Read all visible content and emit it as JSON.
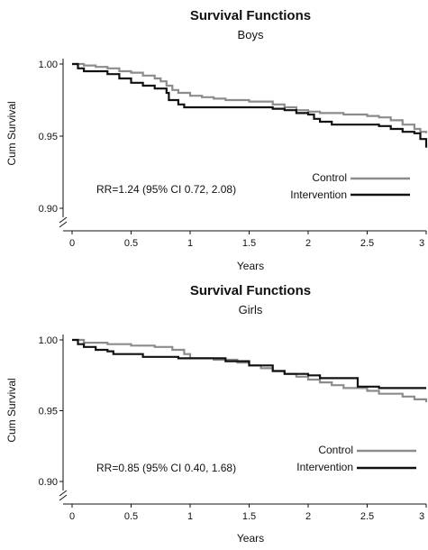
{
  "charts": [
    {
      "type": "line",
      "title": "Survival Functions",
      "subtitle": "Boys",
      "xlabel": "Years",
      "ylabel": "Cum Survival",
      "xlim": [
        0,
        3
      ],
      "ylim": [
        0.9,
        1.0
      ],
      "x_ticks": [
        0,
        0.5,
        1,
        1.5,
        2,
        2.5,
        3
      ],
      "x_tick_labels": [
        "0",
        "0.5",
        "1",
        "1.5",
        "2",
        "2.5",
        "3"
      ],
      "y_ticks": [
        0.9,
        0.95,
        1.0
      ],
      "y_tick_labels": [
        "0.90",
        "0.95",
        "1.00"
      ],
      "annotation": "RR=1.24 (95% CI 0.72, 2.08)",
      "legend_position": "right",
      "series": [
        {
          "name": "Control",
          "color": "#8c8c8c",
          "points": [
            [
              0,
              1.0
            ],
            [
              0.05,
              1.0
            ],
            [
              0.1,
              0.999
            ],
            [
              0.2,
              0.998
            ],
            [
              0.3,
              0.997
            ],
            [
              0.4,
              0.995
            ],
            [
              0.5,
              0.994
            ],
            [
              0.6,
              0.992
            ],
            [
              0.7,
              0.99
            ],
            [
              0.75,
              0.988
            ],
            [
              0.8,
              0.985
            ],
            [
              0.85,
              0.982
            ],
            [
              0.9,
              0.98
            ],
            [
              1.0,
              0.978
            ],
            [
              1.1,
              0.977
            ],
            [
              1.2,
              0.976
            ],
            [
              1.3,
              0.975
            ],
            [
              1.5,
              0.974
            ],
            [
              1.7,
              0.972
            ],
            [
              1.8,
              0.97
            ],
            [
              1.9,
              0.968
            ],
            [
              2.0,
              0.967
            ],
            [
              2.1,
              0.966
            ],
            [
              2.3,
              0.965
            ],
            [
              2.5,
              0.964
            ],
            [
              2.6,
              0.963
            ],
            [
              2.7,
              0.961
            ],
            [
              2.8,
              0.958
            ],
            [
              2.9,
              0.955
            ],
            [
              2.95,
              0.953
            ],
            [
              3.0,
              0.952
            ]
          ]
        },
        {
          "name": "Intervention",
          "color": "#111111",
          "points": [
            [
              0,
              1.0
            ],
            [
              0.05,
              0.997
            ],
            [
              0.1,
              0.995
            ],
            [
              0.3,
              0.993
            ],
            [
              0.4,
              0.99
            ],
            [
              0.5,
              0.987
            ],
            [
              0.6,
              0.985
            ],
            [
              0.7,
              0.983
            ],
            [
              0.8,
              0.98
            ],
            [
              0.82,
              0.975
            ],
            [
              0.9,
              0.972
            ],
            [
              0.95,
              0.97
            ],
            [
              1.0,
              0.97
            ],
            [
              1.5,
              0.97
            ],
            [
              1.7,
              0.969
            ],
            [
              1.8,
              0.968
            ],
            [
              1.9,
              0.966
            ],
            [
              2.0,
              0.965
            ],
            [
              2.05,
              0.962
            ],
            [
              2.1,
              0.96
            ],
            [
              2.2,
              0.958
            ],
            [
              2.5,
              0.958
            ],
            [
              2.6,
              0.957
            ],
            [
              2.7,
              0.955
            ],
            [
              2.8,
              0.953
            ],
            [
              2.9,
              0.952
            ],
            [
              2.95,
              0.948
            ],
            [
              3.0,
              0.942
            ]
          ]
        }
      ]
    },
    {
      "type": "line",
      "title": "Survival Functions",
      "subtitle": "Girls",
      "xlabel": "Years",
      "ylabel": "Cum Survival",
      "xlim": [
        0,
        3
      ],
      "ylim": [
        0.9,
        1.0
      ],
      "x_ticks": [
        0,
        0.5,
        1,
        1.5,
        2,
        2.5,
        3
      ],
      "x_tick_labels": [
        "0",
        "0.5",
        "1",
        "1.5",
        "2",
        "2.5",
        "3"
      ],
      "y_ticks": [
        0.9,
        0.95,
        1.0
      ],
      "y_tick_labels": [
        "0.90",
        "0.95",
        "1.00"
      ],
      "annotation": "RR=0.85 (95% CI 0.40, 1.68)",
      "legend_position": "right",
      "series": [
        {
          "name": "Control",
          "color": "#8c8c8c",
          "points": [
            [
              0,
              1.0
            ],
            [
              0.1,
              0.998
            ],
            [
              0.3,
              0.997
            ],
            [
              0.5,
              0.996
            ],
            [
              0.7,
              0.995
            ],
            [
              0.85,
              0.993
            ],
            [
              0.95,
              0.99
            ],
            [
              1.0,
              0.987
            ],
            [
              1.2,
              0.986
            ],
            [
              1.4,
              0.984
            ],
            [
              1.5,
              0.982
            ],
            [
              1.6,
              0.98
            ],
            [
              1.7,
              0.978
            ],
            [
              1.8,
              0.976
            ],
            [
              1.9,
              0.974
            ],
            [
              2.0,
              0.972
            ],
            [
              2.1,
              0.97
            ],
            [
              2.2,
              0.968
            ],
            [
              2.3,
              0.966
            ],
            [
              2.5,
              0.964
            ],
            [
              2.6,
              0.962
            ],
            [
              2.8,
              0.96
            ],
            [
              2.9,
              0.958
            ],
            [
              3.0,
              0.956
            ]
          ]
        },
        {
          "name": "Intervention",
          "color": "#111111",
          "points": [
            [
              0,
              1.0
            ],
            [
              0.05,
              0.997
            ],
            [
              0.1,
              0.995
            ],
            [
              0.2,
              0.993
            ],
            [
              0.3,
              0.992
            ],
            [
              0.35,
              0.99
            ],
            [
              0.6,
              0.988
            ],
            [
              0.9,
              0.987
            ],
            [
              1.0,
              0.987
            ],
            [
              1.3,
              0.985
            ],
            [
              1.5,
              0.982
            ],
            [
              1.7,
              0.978
            ],
            [
              1.8,
              0.976
            ],
            [
              2.0,
              0.975
            ],
            [
              2.1,
              0.973
            ],
            [
              2.4,
              0.973
            ],
            [
              2.42,
              0.967
            ],
            [
              2.6,
              0.966
            ],
            [
              3.0,
              0.966
            ]
          ]
        }
      ]
    }
  ]
}
